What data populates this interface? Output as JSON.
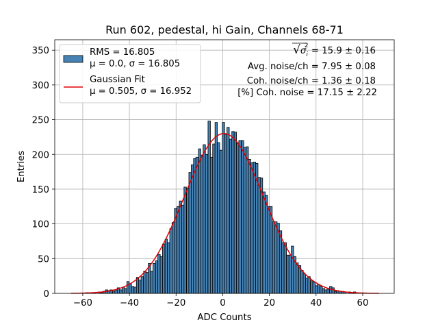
{
  "chart_data": {
    "type": "bar",
    "title": "Run 602, pedestal, hi Gain, Channels 68-71",
    "xlabel": "ADC Counts",
    "ylabel": "Entries",
    "xlim": [
      -72.0,
      73.5
    ],
    "ylim": [
      0,
      365
    ],
    "xticks": [
      -60,
      -40,
      -20,
      0,
      20,
      40,
      60
    ],
    "yticks": [
      0,
      50,
      100,
      150,
      200,
      250,
      300,
      350
    ],
    "grid": true,
    "legend_placement": "top-left",
    "bin_width": 1.02,
    "histogram": {
      "name": "RMS = 16.805",
      "name_line2": "μ = 0.0, σ = 16.805",
      "color": "#4682b4",
      "bins": [
        [
          -58.0,
          1
        ],
        [
          -55.9,
          1
        ],
        [
          -54.9,
          1
        ],
        [
          -52.9,
          2
        ],
        [
          -51.8,
          1
        ],
        [
          -50.8,
          3
        ],
        [
          -49.8,
          5
        ],
        [
          -48.8,
          4
        ],
        [
          -47.8,
          5
        ],
        [
          -46.7,
          3
        ],
        [
          -45.7,
          5
        ],
        [
          -44.7,
          8
        ],
        [
          -43.7,
          5
        ],
        [
          -42.6,
          9
        ],
        [
          -41.6,
          7
        ],
        [
          -40.6,
          17
        ],
        [
          -39.6,
          14
        ],
        [
          -38.6,
          10
        ],
        [
          -37.5,
          9
        ],
        [
          -36.5,
          23
        ],
        [
          -35.5,
          19
        ],
        [
          -34.5,
          24
        ],
        [
          -33.4,
          32
        ],
        [
          -32.4,
          30
        ],
        [
          -31.4,
          43
        ],
        [
          -30.4,
          32
        ],
        [
          -29.4,
          43
        ],
        [
          -28.3,
          47
        ],
        [
          -27.3,
          56
        ],
        [
          -26.3,
          53
        ],
        [
          -25.3,
          71
        ],
        [
          -24.2,
          78
        ],
        [
          -23.2,
          73
        ],
        [
          -22.2,
          93
        ],
        [
          -21.2,
          102
        ],
        [
          -20.2,
          122
        ],
        [
          -19.1,
          125
        ],
        [
          -18.1,
          133
        ],
        [
          -17.1,
          127
        ],
        [
          -16.1,
          153
        ],
        [
          -15.0,
          151
        ],
        [
          -14.0,
          174
        ],
        [
          -13.0,
          185
        ],
        [
          -12.0,
          194
        ],
        [
          -11.0,
          196
        ],
        [
          -9.9,
          208
        ],
        [
          -8.9,
          199
        ],
        [
          -7.9,
          214
        ],
        [
          -6.9,
          200
        ],
        [
          -5.8,
          248
        ],
        [
          -4.8,
          196
        ],
        [
          -3.8,
          215
        ],
        [
          -2.8,
          246
        ],
        [
          -1.8,
          217
        ],
        [
          -0.7,
          206
        ],
        [
          0.3,
          246
        ],
        [
          1.3,
          229
        ],
        [
          2.3,
          239
        ],
        [
          3.4,
          222
        ],
        [
          4.4,
          233
        ],
        [
          5.4,
          232
        ],
        [
          6.4,
          216
        ],
        [
          7.4,
          220
        ],
        [
          8.5,
          220
        ],
        [
          9.5,
          210
        ],
        [
          10.5,
          211
        ],
        [
          11.5,
          193
        ],
        [
          12.6,
          188
        ],
        [
          13.6,
          189
        ],
        [
          14.6,
          187
        ],
        [
          15.6,
          167
        ],
        [
          16.6,
          166
        ],
        [
          17.7,
          146
        ],
        [
          18.7,
          141
        ],
        [
          19.7,
          125
        ],
        [
          20.7,
          125
        ],
        [
          21.8,
          103
        ],
        [
          22.8,
          103
        ],
        [
          23.8,
          101
        ],
        [
          24.8,
          90
        ],
        [
          25.8,
          73
        ],
        [
          26.8,
          73
        ],
        [
          27.9,
          55
        ],
        [
          28.9,
          55
        ],
        [
          29.9,
          68
        ],
        [
          30.9,
          53
        ],
        [
          31.9,
          44
        ],
        [
          33.0,
          40
        ],
        [
          34.0,
          33
        ],
        [
          35.0,
          28
        ],
        [
          36.0,
          22
        ],
        [
          37.0,
          24
        ],
        [
          38.1,
          18
        ],
        [
          39.1,
          16
        ],
        [
          40.1,
          11
        ],
        [
          41.1,
          13
        ],
        [
          42.2,
          10
        ],
        [
          43.2,
          7
        ],
        [
          44.2,
          5
        ],
        [
          45.2,
          6
        ],
        [
          46.3,
          10
        ],
        [
          47.3,
          8
        ],
        [
          48.3,
          3
        ],
        [
          49.3,
          4
        ],
        [
          50.3,
          3
        ],
        [
          51.4,
          3
        ],
        [
          52.4,
          2
        ],
        [
          54.4,
          2
        ],
        [
          55.5,
          1
        ],
        [
          56.5,
          2
        ]
      ]
    },
    "fit": {
      "name": "Gaussian Fit",
      "name_line2": "μ = 0.505, σ = 16.952",
      "color": "#e00000",
      "mu": 0.505,
      "sigma": 16.952,
      "amplitude": 230,
      "x_range": [
        -65.0,
        67.0
      ]
    },
    "annotations": [
      {
        "prefix": "√",
        "sym": "σ",
        "sub": "i",
        "sup": "2",
        "value": " = 15.9 ± 0.16"
      },
      {
        "text": "Avg. noise/ch = 7.95 ± 0.08"
      },
      {
        "text": "Coh. noise/ch = 1.36 ± 0.18"
      },
      {
        "text": "[%] Coh. noise = 17.15 ± 2.22"
      }
    ]
  }
}
